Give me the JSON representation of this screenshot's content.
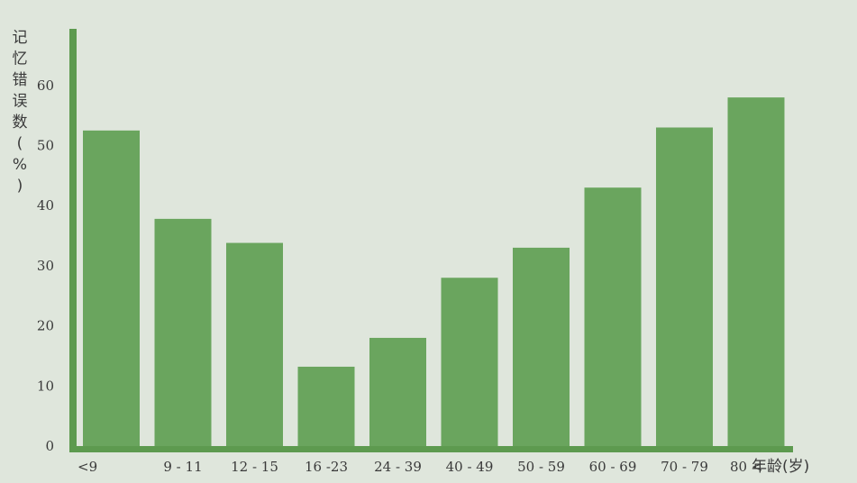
{
  "chart_data": {
    "type": "bar",
    "title": "",
    "ylabel": "记忆错误数(%)",
    "xlabel": "年龄(岁)",
    "categories": [
      "<9",
      "9 - 11",
      "12 - 15",
      "16 -23",
      "24 - 39",
      "40 - 49",
      "50 - 59",
      "60 - 69",
      "70 - 79",
      "80 <"
    ],
    "values": [
      52.5,
      37.8,
      33.8,
      13.2,
      18.0,
      28.0,
      33.0,
      43.0,
      53.0,
      58.0
    ],
    "ylim": [
      0,
      68
    ],
    "yticks": [
      0,
      10,
      20,
      30,
      40,
      50,
      60
    ],
    "grid": false,
    "colors": {
      "bar": "#6aa55e",
      "axis": "#5d9a4f",
      "background": "#dfe6dc"
    }
  }
}
